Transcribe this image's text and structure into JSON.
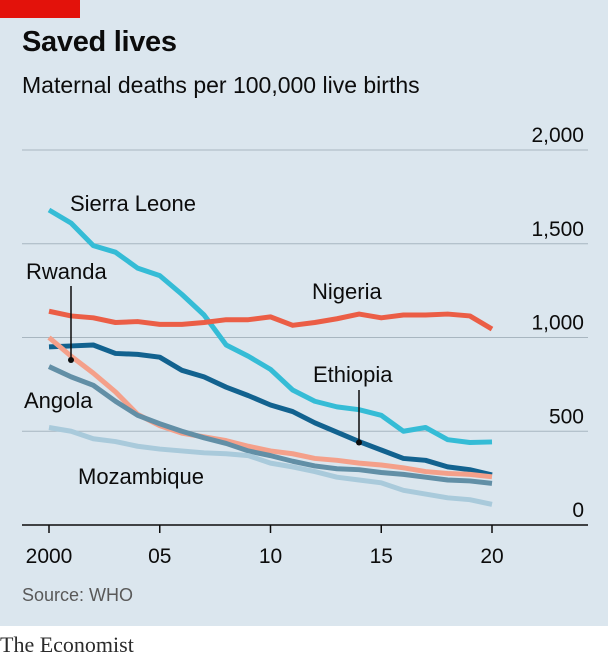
{
  "header": {
    "title": "Saved lives",
    "subtitle": "Maternal deaths per 100,000 live births"
  },
  "footer": {
    "source": "Source: WHO",
    "brand": "The Economist"
  },
  "colors": {
    "background": "#dbe6ee",
    "accent": "#e3120b",
    "gridline": "#a8b6c0",
    "axis": "#0c0c0c"
  },
  "chart_data": {
    "type": "line",
    "title": "Saved lives",
    "subtitle": "Maternal deaths per 100,000 live births",
    "xlabel": "",
    "ylabel": "",
    "x": [
      2000,
      2001,
      2002,
      2003,
      2004,
      2005,
      2006,
      2007,
      2008,
      2009,
      2010,
      2011,
      2012,
      2013,
      2014,
      2015,
      2016,
      2017,
      2018,
      2019,
      2020
    ],
    "xlim": [
      2000,
      2020
    ],
    "ylim": [
      0,
      2000
    ],
    "x_ticks": [
      2000,
      2005,
      2010,
      2015,
      2020
    ],
    "x_tick_labels": [
      "2000",
      "05",
      "10",
      "15",
      "20"
    ],
    "y_ticks": [
      0,
      500,
      1000,
      1500,
      2000
    ],
    "y_tick_labels": [
      "0",
      "500",
      "1,000",
      "1,500",
      "2,000"
    ],
    "grid": true,
    "legend": "direct labels on lines",
    "series": [
      {
        "name": "Sierra Leone",
        "color": "#35bcd6",
        "values": [
          1680,
          1610,
          1490,
          1455,
          1370,
          1330,
          1230,
          1120,
          960,
          900,
          830,
          720,
          660,
          630,
          615,
          585,
          500,
          520,
          455,
          440,
          443
        ]
      },
      {
        "name": "Nigeria",
        "color": "#eb5e46",
        "values": [
          1140,
          1115,
          1105,
          1080,
          1085,
          1070,
          1070,
          1080,
          1095,
          1095,
          1110,
          1065,
          1080,
          1100,
          1125,
          1105,
          1120,
          1120,
          1125,
          1115,
          1045
        ]
      },
      {
        "name": "Ethiopia",
        "color": "#12628f",
        "values": [
          950,
          955,
          960,
          915,
          910,
          895,
          825,
          790,
          735,
          690,
          640,
          605,
          545,
          495,
          445,
          400,
          355,
          345,
          310,
          295,
          267
        ]
      },
      {
        "name": "Rwanda",
        "color": "#f4a08a",
        "values": [
          1000,
          900,
          810,
          710,
          590,
          530,
          490,
          470,
          450,
          420,
          395,
          380,
          355,
          345,
          330,
          320,
          305,
          285,
          275,
          270,
          257
        ]
      },
      {
        "name": "Angola",
        "color": "#628fa6",
        "values": [
          845,
          790,
          745,
          660,
          585,
          540,
          500,
          465,
          435,
          395,
          370,
          340,
          315,
          300,
          295,
          280,
          270,
          255,
          240,
          235,
          222
        ]
      },
      {
        "name": "Mozambique",
        "color": "#a9cadb",
        "values": [
          520,
          500,
          460,
          445,
          420,
          405,
          395,
          385,
          380,
          370,
          330,
          310,
          285,
          255,
          240,
          225,
          185,
          165,
          145,
          135,
          110
        ]
      }
    ],
    "annotations": [
      {
        "label": "Sierra Leone",
        "leader": false
      },
      {
        "label": "Nigeria",
        "leader": false
      },
      {
        "label": "Rwanda",
        "leader": true,
        "points_to_year": 2001,
        "points_to_value": 880
      },
      {
        "label": "Ethiopia",
        "leader": true,
        "points_to_year": 2014,
        "points_to_value": 440
      },
      {
        "label": "Angola",
        "leader": false
      },
      {
        "label": "Mozambique",
        "leader": false
      }
    ]
  }
}
